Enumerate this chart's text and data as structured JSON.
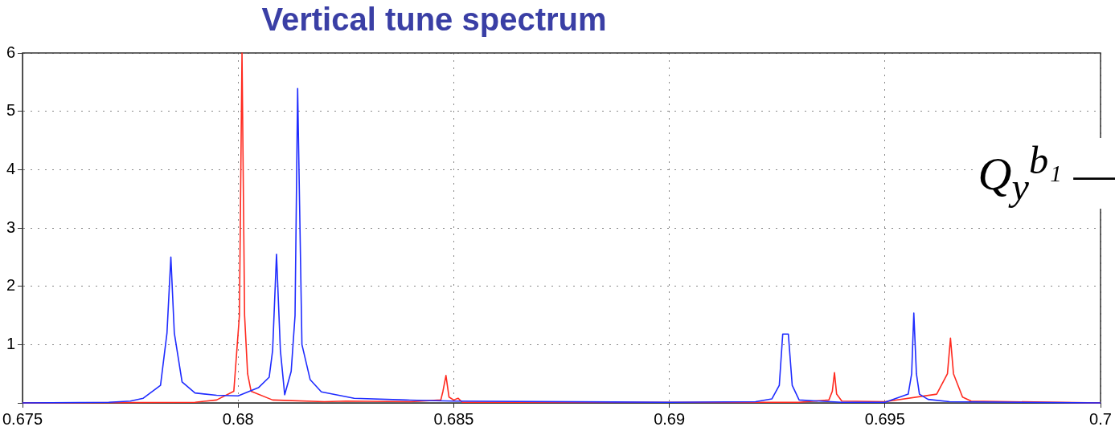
{
  "chart_data": {
    "type": "line",
    "title": "Vertical tune spectrum",
    "annotations": [
      "Q$_{y}$$^{b₁}$ —"
    ],
    "xlim": [
      0.675,
      0.7
    ],
    "xticks": [
      0.675,
      0.68,
      0.685,
      0.69,
      0.695,
      0.7
    ],
    "ylim": [
      0,
      6
    ],
    "yticks": [
      {
        "value": 0,
        "label": null
      },
      1,
      2,
      3,
      4,
      5,
      6
    ],
    "grid": true,
    "legend": false,
    "marker": "none",
    "line_style": "solid",
    "series": [
      {
        "color": "#1f2cff",
        "x": [
          0.675,
          0.677,
          0.6775,
          0.6778,
          0.6782,
          0.67835,
          0.67844,
          0.67852,
          0.6787,
          0.679,
          0.6795,
          0.68,
          0.68047,
          0.68072,
          0.6808,
          0.68089,
          0.68098,
          0.68108,
          0.68123,
          0.68132,
          0.68138,
          0.68148,
          0.68167,
          0.68193,
          0.68269,
          0.68389,
          0.685,
          0.69,
          0.692,
          0.69238,
          0.69255,
          0.69263,
          0.69276,
          0.69285,
          0.69301,
          0.694,
          0.695,
          0.69554,
          0.69562,
          0.69567,
          0.69573,
          0.6958,
          0.696,
          0.6965,
          0.7
        ],
        "values": [
          0,
          0.01,
          0.03,
          0.08,
          0.3,
          1.2,
          2.5,
          1.2,
          0.36,
          0.17,
          0.13,
          0.12,
          0.26,
          0.44,
          0.9,
          2.55,
          0.9,
          0.14,
          0.54,
          1.5,
          5.39,
          1.0,
          0.4,
          0.19,
          0.08,
          0.05,
          0.03,
          0.01,
          0.02,
          0.07,
          0.3,
          1.18,
          1.18,
          0.3,
          0.05,
          0.01,
          0.01,
          0.15,
          0.5,
          1.54,
          0.5,
          0.15,
          0.06,
          0.02,
          0
        ]
      },
      {
        "color": "#ff2a1f",
        "x": [
          0.675,
          0.679,
          0.6795,
          0.6799,
          0.68003,
          0.68009,
          0.68015,
          0.68022,
          0.6803,
          0.6808,
          0.682,
          0.6825,
          0.684,
          0.6847,
          0.68475,
          0.68482,
          0.68489,
          0.685,
          0.6851,
          0.6852,
          0.693,
          0.6937,
          0.69378,
          0.69383,
          0.69388,
          0.694,
          0.695,
          0.6962,
          0.69645,
          0.69652,
          0.69659,
          0.6968,
          0.697,
          0.7
        ],
        "values": [
          0,
          0.01,
          0.05,
          0.2,
          1.5,
          6,
          1.5,
          0.5,
          0.2,
          0.05,
          0.02,
          0.03,
          0.02,
          0.05,
          0.2,
          0.47,
          0.1,
          0.05,
          0.08,
          0.01,
          0.01,
          0.05,
          0.2,
          0.52,
          0.15,
          0.03,
          0.02,
          0.15,
          0.5,
          1.11,
          0.5,
          0.1,
          0.03,
          0
        ]
      }
    ]
  }
}
